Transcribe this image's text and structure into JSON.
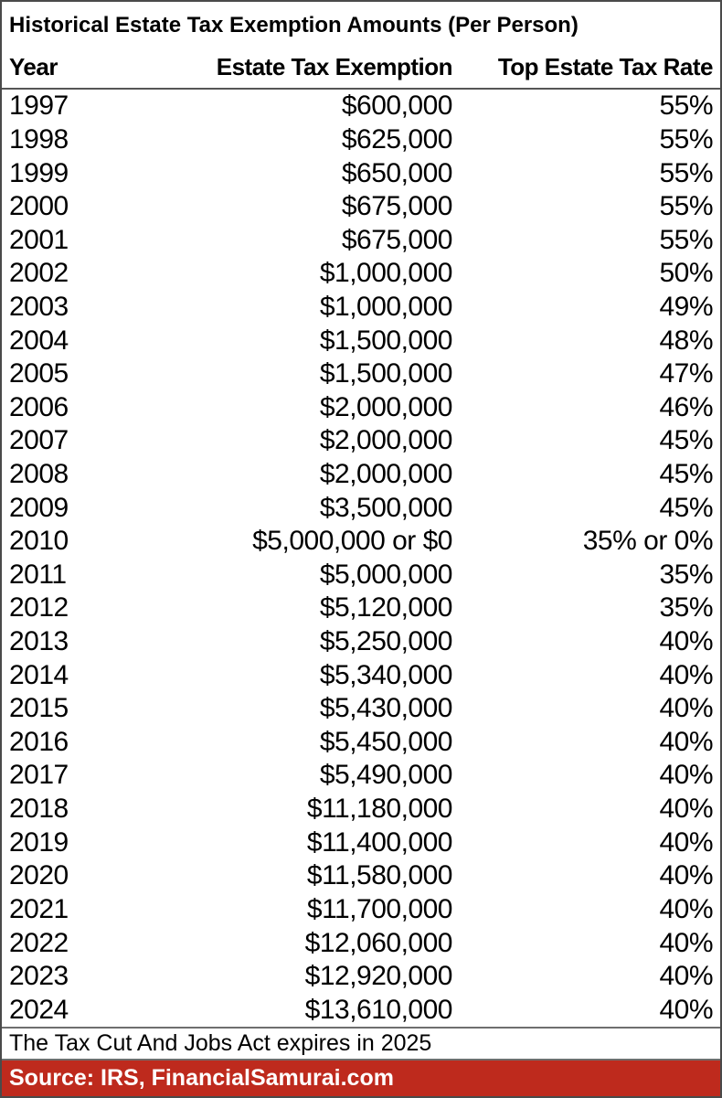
{
  "colors": {
    "source_bar_background": "#be2a1d",
    "source_bar_text": "#ffffff",
    "outer_border": "#4a4a4a",
    "grid_line": "#6e6e6e",
    "text": "#000000",
    "background": "#ffffff"
  },
  "chart_data": {
    "type": "table",
    "title": "Historical Estate Tax Exemption Amounts (Per Person)",
    "columns": [
      "Year",
      "Estate Tax Exemption",
      "Top Estate Tax Rate"
    ],
    "rows": [
      {
        "year": "1997",
        "exemption": "$600,000",
        "rate": "55%"
      },
      {
        "year": "1998",
        "exemption": "$625,000",
        "rate": "55%"
      },
      {
        "year": "1999",
        "exemption": "$650,000",
        "rate": "55%"
      },
      {
        "year": "2000",
        "exemption": "$675,000",
        "rate": "55%"
      },
      {
        "year": "2001",
        "exemption": "$675,000",
        "rate": "55%"
      },
      {
        "year": "2002",
        "exemption": "$1,000,000",
        "rate": "50%"
      },
      {
        "year": "2003",
        "exemption": "$1,000,000",
        "rate": "49%"
      },
      {
        "year": "2004",
        "exemption": "$1,500,000",
        "rate": "48%"
      },
      {
        "year": "2005",
        "exemption": "$1,500,000",
        "rate": "47%"
      },
      {
        "year": "2006",
        "exemption": "$2,000,000",
        "rate": "46%"
      },
      {
        "year": "2007",
        "exemption": "$2,000,000",
        "rate": "45%"
      },
      {
        "year": "2008",
        "exemption": "$2,000,000",
        "rate": "45%"
      },
      {
        "year": "2009",
        "exemption": "$3,500,000",
        "rate": "45%"
      },
      {
        "year": "2010",
        "exemption": "$5,000,000 or $0",
        "rate": "35% or 0%"
      },
      {
        "year": "2011",
        "exemption": "$5,000,000",
        "rate": "35%"
      },
      {
        "year": "2012",
        "exemption": "$5,120,000",
        "rate": "35%"
      },
      {
        "year": "2013",
        "exemption": "$5,250,000",
        "rate": "40%"
      },
      {
        "year": "2014",
        "exemption": "$5,340,000",
        "rate": "40%"
      },
      {
        "year": "2015",
        "exemption": "$5,430,000",
        "rate": "40%"
      },
      {
        "year": "2016",
        "exemption": "$5,450,000",
        "rate": "40%"
      },
      {
        "year": "2017",
        "exemption": "$5,490,000",
        "rate": "40%"
      },
      {
        "year": "2018",
        "exemption": "$11,180,000",
        "rate": "40%"
      },
      {
        "year": "2019",
        "exemption": "$11,400,000",
        "rate": "40%"
      },
      {
        "year": "2020",
        "exemption": "$11,580,000",
        "rate": "40%"
      },
      {
        "year": "2021",
        "exemption": "$11,700,000",
        "rate": "40%"
      },
      {
        "year": "2022",
        "exemption": "$12,060,000",
        "rate": "40%"
      },
      {
        "year": "2023",
        "exemption": "$12,920,000",
        "rate": "40%"
      },
      {
        "year": "2024",
        "exemption": "$13,610,000",
        "rate": "40%"
      }
    ],
    "note": "The Tax Cut And Jobs Act expires in 2025",
    "source": "Source: IRS, FinancialSamurai.com",
    "layout": {
      "grid": "horizontal rules under header, above note and under note only",
      "legend_position": "none",
      "value_alignment": "exemption and rate columns right-aligned, year left-aligned"
    }
  }
}
